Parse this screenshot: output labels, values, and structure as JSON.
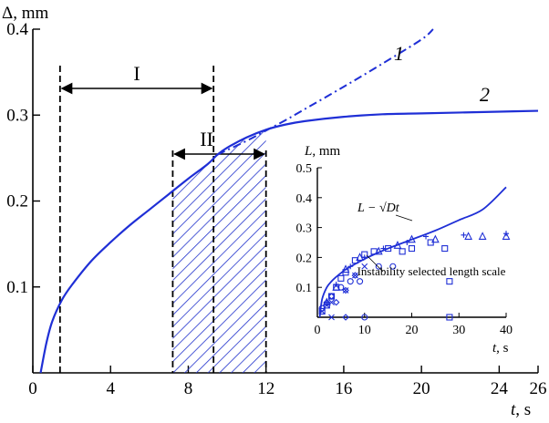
{
  "chart_data": [
    {
      "type": "line",
      "ylabel": "Δ, mm",
      "xlabel_var": "t",
      "xlabel_unit": ", s",
      "xlim": [
        0,
        26
      ],
      "ylim": [
        0,
        0.4
      ],
      "xticks": [
        0,
        4,
        8,
        12,
        16,
        20,
        24,
        26
      ],
      "yticks": [
        0.1,
        0.2,
        0.3,
        0.4
      ],
      "x": [
        0.4,
        0.7,
        1.0,
        1.5,
        2,
        3,
        4,
        5,
        6,
        7,
        8,
        9,
        9.5,
        10,
        11,
        12,
        13,
        14,
        16,
        18,
        20,
        22,
        24,
        26
      ],
      "series": [
        {
          "name": "2",
          "values": [
            0.0,
            0.035,
            0.06,
            0.085,
            0.102,
            0.13,
            0.152,
            0.172,
            0.19,
            0.208,
            0.226,
            0.243,
            0.254,
            0.262,
            0.274,
            0.283,
            0.289,
            0.293,
            0.298,
            0.301,
            0.302,
            0.303,
            0.304,
            0.305
          ]
        }
      ],
      "curve1": {
        "name": "1",
        "x": [
          9.5,
          11,
          12,
          13,
          14,
          16,
          18,
          20,
          20.6
        ],
        "values": [
          0.254,
          0.27,
          0.282,
          0.294,
          0.307,
          0.333,
          0.36,
          0.388,
          0.4
        ]
      },
      "regions": [
        {
          "name": "I",
          "x_from": 1.4,
          "x_to": 9.3
        },
        {
          "name": "II",
          "x_from": 7.2,
          "x_to": 12.0
        }
      ]
    },
    {
      "type": "scatter",
      "ylabel_var": "L",
      "ylabel_unit": ", mm",
      "xlabel_var": "t",
      "xlabel_unit": ", s",
      "xlim": [
        0,
        40
      ],
      "ylim": [
        0,
        0.5
      ],
      "xticks": [
        0,
        10,
        20,
        30,
        40
      ],
      "yticks": [
        0.1,
        0.2,
        0.3,
        0.4,
        0.5
      ],
      "fit_line": {
        "label": "L − √Dt",
        "x": [
          0.5,
          1,
          2,
          3,
          4,
          5,
          6,
          8,
          10,
          12,
          15,
          20,
          25,
          30,
          35,
          40
        ],
        "values": [
          0.0,
          0.06,
          0.1,
          0.12,
          0.135,
          0.148,
          0.16,
          0.178,
          0.195,
          0.21,
          0.23,
          0.26,
          0.29,
          0.325,
          0.36,
          0.435
        ]
      },
      "annotation": "Instability selected length scale",
      "points": [
        {
          "marker": "square",
          "x": 1,
          "y": 0.02
        },
        {
          "marker": "square",
          "x": 2,
          "y": 0.04
        },
        {
          "marker": "square",
          "x": 3,
          "y": 0.07
        },
        {
          "marker": "square",
          "x": 4,
          "y": 0.1
        },
        {
          "marker": "square",
          "x": 5,
          "y": 0.13
        },
        {
          "marker": "square",
          "x": 6,
          "y": 0.15
        },
        {
          "marker": "square",
          "x": 8,
          "y": 0.19
        },
        {
          "marker": "square",
          "x": 10,
          "y": 0.21
        },
        {
          "marker": "square",
          "x": 12,
          "y": 0.22
        },
        {
          "marker": "square",
          "x": 15,
          "y": 0.23
        },
        {
          "marker": "square",
          "x": 18,
          "y": 0.22
        },
        {
          "marker": "square",
          "x": 20,
          "y": 0.23
        },
        {
          "marker": "square",
          "x": 24,
          "y": 0.25
        },
        {
          "marker": "square",
          "x": 27,
          "y": 0.23
        },
        {
          "marker": "square",
          "x": 28,
          "y": 0.12
        },
        {
          "marker": "square",
          "x": 28,
          "y": 0.0
        },
        {
          "marker": "triangle",
          "x": 2,
          "y": 0.05
        },
        {
          "marker": "triangle",
          "x": 4,
          "y": 0.1
        },
        {
          "marker": "triangle",
          "x": 6,
          "y": 0.16
        },
        {
          "marker": "triangle",
          "x": 9,
          "y": 0.2
        },
        {
          "marker": "triangle",
          "x": 13,
          "y": 0.22
        },
        {
          "marker": "triangle",
          "x": 17,
          "y": 0.24
        },
        {
          "marker": "triangle",
          "x": 20,
          "y": 0.26
        },
        {
          "marker": "triangle",
          "x": 25,
          "y": 0.26
        },
        {
          "marker": "triangle",
          "x": 32,
          "y": 0.27
        },
        {
          "marker": "triangle",
          "x": 35,
          "y": 0.27
        },
        {
          "marker": "triangle",
          "x": 40,
          "y": 0.27
        },
        {
          "marker": "plus",
          "x": 2,
          "y": 0.05
        },
        {
          "marker": "plus",
          "x": 4,
          "y": 0.11
        },
        {
          "marker": "plus",
          "x": 7,
          "y": 0.17
        },
        {
          "marker": "plus",
          "x": 10,
          "y": 0.2
        },
        {
          "marker": "plus",
          "x": 14,
          "y": 0.23
        },
        {
          "marker": "plus",
          "x": 19,
          "y": 0.25
        },
        {
          "marker": "plus",
          "x": 23,
          "y": 0.27
        },
        {
          "marker": "plus",
          "x": 31,
          "y": 0.275
        },
        {
          "marker": "plus",
          "x": 40,
          "y": 0.28
        },
        {
          "marker": "circle",
          "x": 1,
          "y": 0.03
        },
        {
          "marker": "circle",
          "x": 3,
          "y": 0.07
        },
        {
          "marker": "circle",
          "x": 5,
          "y": 0.1
        },
        {
          "marker": "circle",
          "x": 7,
          "y": 0.12
        },
        {
          "marker": "circle",
          "x": 9,
          "y": 0.12
        },
        {
          "marker": "circle",
          "x": 13,
          "y": 0.17
        },
        {
          "marker": "circle",
          "x": 16,
          "y": 0.17
        },
        {
          "marker": "circle",
          "x": 10,
          "y": 0.0
        },
        {
          "marker": "diamond",
          "x": 2,
          "y": 0.05
        },
        {
          "marker": "diamond",
          "x": 3,
          "y": 0.07
        },
        {
          "marker": "diamond",
          "x": 4,
          "y": 0.05
        },
        {
          "marker": "diamond",
          "x": 6,
          "y": 0.09
        },
        {
          "marker": "diamond",
          "x": 8,
          "y": 0.14
        },
        {
          "marker": "diamond",
          "x": 6,
          "y": 0.0
        },
        {
          "marker": "cross",
          "x": 1,
          "y": 0.02
        },
        {
          "marker": "cross",
          "x": 2,
          "y": 0.04
        },
        {
          "marker": "cross",
          "x": 3,
          "y": 0.05
        },
        {
          "marker": "cross",
          "x": 6,
          "y": 0.09
        },
        {
          "marker": "cross",
          "x": 8,
          "y": 0.14
        },
        {
          "marker": "cross",
          "x": 10,
          "y": 0.17
        },
        {
          "marker": "cross",
          "x": 3,
          "y": 0.0
        }
      ]
    }
  ],
  "colors": {
    "curve": "#1f2fd6",
    "axes": "#000000",
    "hatch": "#2233cc"
  }
}
